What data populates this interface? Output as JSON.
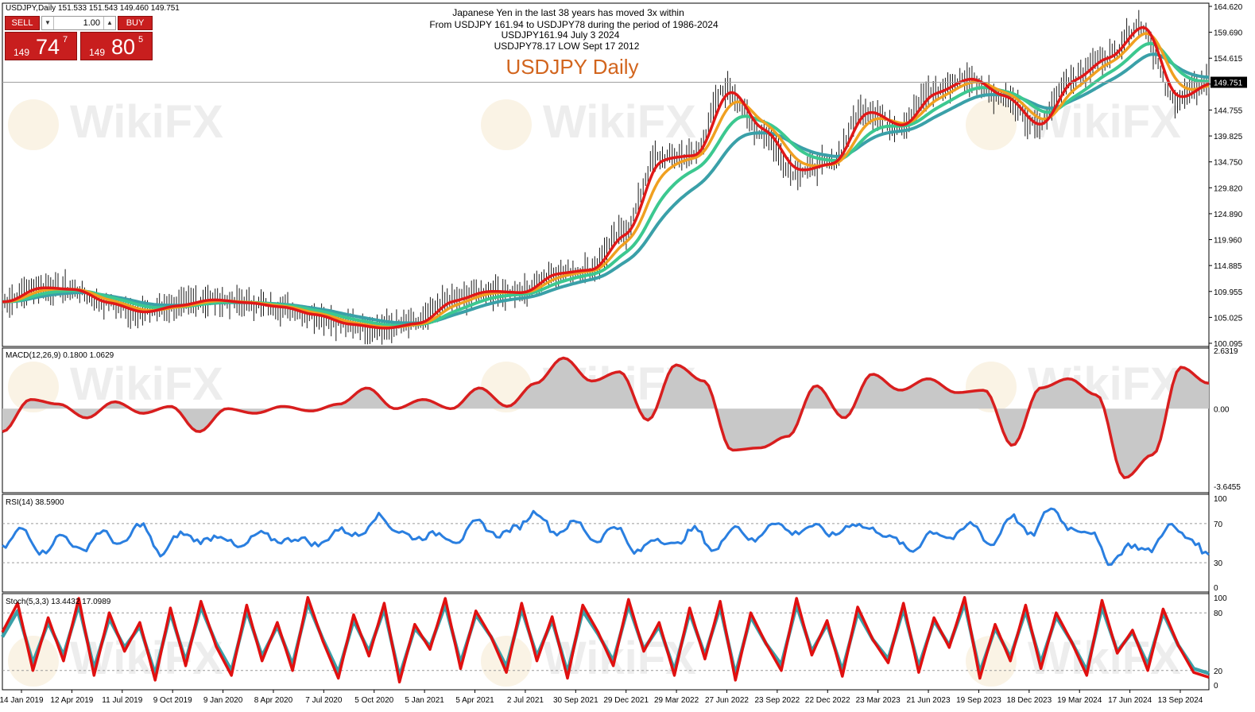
{
  "header": {
    "symbol_line": "USDJPY,Daily  151.533 151.543 149.460 149.751",
    "current_price_label": "149.751"
  },
  "trade_widget": {
    "sell_label": "SELL",
    "buy_label": "BUY",
    "lot_value": "1.00",
    "sell_prefix": "149",
    "sell_big": "74",
    "sell_sup": "7",
    "buy_prefix": "149",
    "buy_big": "80",
    "buy_sup": "5"
  },
  "annotations": {
    "lines": [
      "Japanese Yen in the last 38 years has moved 3x within",
      "From USDJPY 161.94 to USDJPY78 during the period of 1986-2024",
      "USDJPY161.94 July 3 2024",
      "USDJPY78.17 LOW Sept 17 2012"
    ],
    "chart_title": "USDJPY Daily"
  },
  "watermark": "WikiFX",
  "chart_data": [
    {
      "type": "line",
      "panel": "price",
      "title": "USDJPY Daily",
      "x_labels": [
        "14 Jan 2019",
        "12 Apr 2019",
        "11 Jul 2019",
        "9 Oct 2019",
        "9 Jan 2020",
        "8 Apr 2020",
        "7 Jul 2020",
        "5 Oct 2020",
        "5 Jan 2021",
        "5 Apr 2021",
        "2 Jul 2021",
        "30 Sep 2021",
        "29 Dec 2021",
        "29 Mar 2022",
        "27 Jun 2022",
        "23 Sep 2022",
        "22 Dec 2022",
        "23 Mar 2023",
        "21 Jun 2023",
        "19 Sep 2023",
        "18 Dec 2023",
        "19 Mar 2024",
        "17 Jun 2024",
        "13 Sep 2024"
      ],
      "y_ticks": [
        "164.620",
        "159.690",
        "154.615",
        "149.751",
        "144.755",
        "139.825",
        "134.750",
        "129.820",
        "124.890",
        "119.960",
        "114.885",
        "109.955",
        "105.025",
        "100.095"
      ],
      "ylim": [
        100.095,
        164.62
      ],
      "current_price": 149.751,
      "series": [
        {
          "values": [
            108.5,
            111.2,
            110.8,
            108.2,
            106.5,
            107.8,
            108.9,
            108.3,
            107.5,
            106.0,
            104.2,
            103.5,
            104.5,
            108.8,
            110.5,
            110.2,
            113.9,
            114.5,
            121.5,
            135.5,
            136.0,
            148.5,
            140.5,
            133.0,
            134.5,
            144.5,
            141.5,
            148.0,
            150.5,
            147.0,
            141.5,
            150.5,
            154.5,
            160.5,
            146.5,
            149.75
          ]
        }
      ],
      "colors": {
        "price": "#1a1a1a",
        "ma_fast": "#e01818",
        "ma_2": "#f0a020",
        "ma_3": "#3cc890",
        "ma_slow": "#3aa0a8"
      }
    },
    {
      "type": "area",
      "panel": "MACD",
      "label": "MACD(12,26,9) 0.1800 1.0629",
      "y_ticks": [
        "2.6319",
        "0.00",
        "-3.6455"
      ],
      "ylim": [
        -3.6455,
        2.6319
      ],
      "series": [
        {
          "values": [
            -1.0,
            0.4,
            0.2,
            -0.4,
            0.3,
            -0.2,
            0.1,
            -1.0,
            0.0,
            -0.2,
            0.1,
            -0.1,
            0.2,
            0.9,
            0.0,
            0.4,
            0.0,
            0.9,
            0.1,
            1.1,
            2.2,
            1.2,
            1.6,
            -0.5,
            1.9,
            1.2,
            -1.8,
            -1.7,
            -1.2,
            1.0,
            -0.4,
            1.5,
            0.8,
            1.3,
            0.7,
            0.8,
            -1.6,
            0.9,
            1.3,
            0.6,
            -3.0,
            -2.0,
            1.8,
            1.1
          ]
        }
      ],
      "colors": {
        "line": "#d81e1e",
        "fill": "#c8c8c8"
      }
    },
    {
      "type": "line",
      "panel": "RSI",
      "label": "RSI(14) 38.5900",
      "y_ticks": [
        "100",
        "70",
        "30",
        "0"
      ],
      "ylim": [
        0,
        100
      ],
      "series": [
        {
          "values": [
            45,
            65,
            40,
            58,
            42,
            62,
            48,
            70,
            38,
            60,
            52,
            58,
            45,
            60,
            52,
            55,
            48,
            64,
            58,
            78,
            62,
            55,
            60,
            52,
            72,
            58,
            66,
            82,
            60,
            72,
            52,
            68,
            40,
            55,
            48,
            65,
            42,
            68,
            52,
            72,
            60,
            68,
            58,
            70,
            64,
            55,
            42,
            62,
            55,
            70,
            48,
            78,
            58,
            86,
            65,
            62,
            30,
            48,
            42,
            68,
            55,
            38
          ]
        }
      ],
      "colors": {
        "line": "#2a7fe0"
      }
    },
    {
      "type": "line",
      "panel": "Stochastic",
      "label": "Stoch(5,3,3) 13.4432 17.0989",
      "y_ticks": [
        "100",
        "80",
        "20",
        "0"
      ],
      "ylim": [
        0,
        100
      ],
      "series": [
        {
          "values": [
            60,
            90,
            20,
            75,
            30,
            95,
            15,
            80,
            40,
            70,
            10,
            85,
            25,
            92,
            45,
            15,
            88,
            30,
            70,
            20,
            96,
            50,
            12,
            78,
            35,
            90,
            8,
            68,
            42,
            95,
            22,
            82,
            55,
            18,
            90,
            30,
            76,
            12,
            88,
            60,
            25,
            94,
            40,
            70,
            15,
            85,
            32,
            92,
            10,
            80,
            48,
            20,
            95,
            36,
            72,
            14,
            86,
            52,
            28,
            90,
            18,
            75,
            44,
            96,
            12,
            68,
            30,
            88,
            22,
            80,
            50,
            15,
            93,
            38,
            62,
            20,
            84,
            46,
            18,
            13
          ]
        },
        {
          "values": [
            55,
            82,
            28,
            70,
            36,
            88,
            22,
            74,
            44,
            66,
            16,
            80,
            30,
            86,
            48,
            20,
            82,
            35,
            66,
            26,
            90,
            52,
            18,
            72,
            40,
            84,
            14,
            64,
            45,
            88,
            28,
            78,
            55,
            24,
            84,
            35,
            72,
            18,
            82,
            58,
            30,
            88,
            42,
            66,
            20,
            80,
            36,
            86,
            16,
            76,
            48,
            26,
            88,
            40,
            68,
            20,
            80,
            52,
            32,
            84,
            24,
            72,
            46,
            90,
            18,
            64,
            34,
            82,
            28,
            76,
            50,
            20,
            86,
            40,
            60,
            26,
            80,
            46,
            22,
            17
          ]
        }
      ],
      "colors": {
        "main": "#e01010",
        "signal": "#3aa0a8"
      }
    }
  ]
}
